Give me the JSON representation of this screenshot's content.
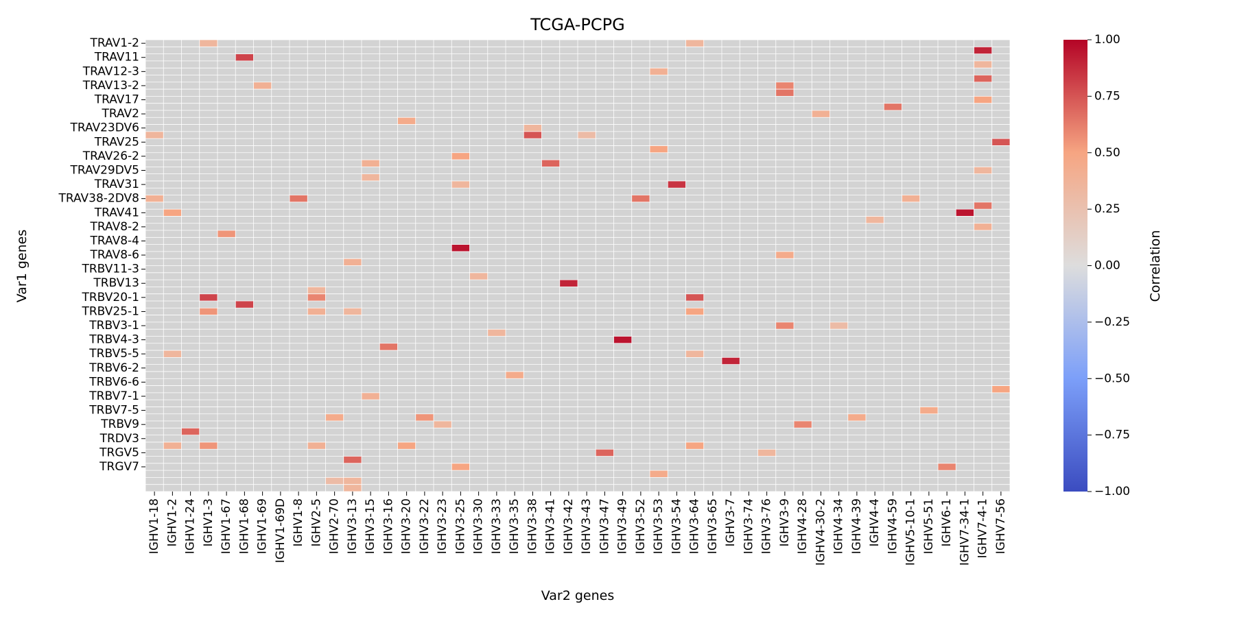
{
  "chart_data": {
    "type": "heatmap",
    "title": "TCGA-PCPG",
    "xlabel": "Var2 genes",
    "ylabel": "Var1 genes",
    "colorbar_label": "Correlation",
    "colormap": "coolwarm",
    "vmin": -1.0,
    "vmax": 1.0,
    "nan_color": "#d3d3d3",
    "colorbar_ticks": [
      "1.00",
      "0.75",
      "0.50",
      "0.25",
      "0.00",
      "−0.25",
      "−0.50",
      "−0.75",
      "−1.00"
    ],
    "x_tick_labels": [
      "IGHV1-18",
      "IGHV1-2",
      "IGHV1-24",
      "IGHV1-3",
      "IGHV1-67",
      "IGHV1-68",
      "IGHV1-69",
      "IGHV1-69D",
      "IGHV1-8",
      "IGHV2-5",
      "IGHV2-70",
      "IGHV3-13",
      "IGHV3-15",
      "IGHV3-16",
      "IGHV3-20",
      "IGHV3-22",
      "IGHV3-23",
      "IGHV3-25",
      "IGHV3-30",
      "IGHV3-33",
      "IGHV3-35",
      "IGHV3-38",
      "IGHV3-41",
      "IGHV3-42",
      "IGHV3-43",
      "IGHV3-47",
      "IGHV3-49",
      "IGHV3-52",
      "IGHV3-53",
      "IGHV3-54",
      "IGHV3-64",
      "IGHV3-65",
      "IGHV3-7",
      "IGHV3-74",
      "IGHV3-76",
      "IGHV3-9",
      "IGHV4-28",
      "IGHV4-30-2",
      "IGHV4-34",
      "IGHV4-39",
      "IGHV4-4",
      "IGHV4-59",
      "IGHV5-10-1",
      "IGHV5-51",
      "IGHV6-1",
      "IGHV7-34-1",
      "IGHV7-4-1",
      "IGHV7-56"
    ],
    "n_rows": 64,
    "y_tick_labels": [
      "TRAV1-2",
      "TRAV11",
      "TRAV12-3",
      "TRAV13-2",
      "TRAV17",
      "TRAV2",
      "TRAV23DV6",
      "TRAV25",
      "TRAV26-2",
      "TRAV29DV5",
      "TRAV31",
      "TRAV38-2DV8",
      "TRAV41",
      "TRAV8-2",
      "TRAV8-4",
      "TRAV8-6",
      "TRBV11-3",
      "TRBV13",
      "TRBV20-1",
      "TRBV25-1",
      "TRBV3-1",
      "TRBV4-3",
      "TRBV5-5",
      "TRBV6-2",
      "TRBV6-6",
      "TRBV7-1",
      "TRBV7-5",
      "TRBV9",
      "TRDV3",
      "TRGV5",
      "TRGV7"
    ],
    "cells": [
      {
        "row": 0,
        "col": 3,
        "value": 0.35
      },
      {
        "row": 0,
        "col": 30,
        "value": 0.35
      },
      {
        "row": 1,
        "col": 46,
        "value": 0.9
      },
      {
        "row": 2,
        "col": 5,
        "value": 0.8
      },
      {
        "row": 3,
        "col": 46,
        "value": 0.35
      },
      {
        "row": 4,
        "col": 28,
        "value": 0.4
      },
      {
        "row": 5,
        "col": 46,
        "value": 0.7
      },
      {
        "row": 6,
        "col": 6,
        "value": 0.4
      },
      {
        "row": 6,
        "col": 35,
        "value": 0.6
      },
      {
        "row": 7,
        "col": 35,
        "value": 0.65
      },
      {
        "row": 8,
        "col": 46,
        "value": 0.5
      },
      {
        "row": 9,
        "col": 41,
        "value": 0.65
      },
      {
        "row": 10,
        "col": 37,
        "value": 0.4
      },
      {
        "row": 11,
        "col": 14,
        "value": 0.45
      },
      {
        "row": 12,
        "col": 21,
        "value": 0.35
      },
      {
        "row": 13,
        "col": 0,
        "value": 0.35
      },
      {
        "row": 13,
        "col": 21,
        "value": 0.75
      },
      {
        "row": 13,
        "col": 24,
        "value": 0.3
      },
      {
        "row": 14,
        "col": 47,
        "value": 0.75
      },
      {
        "row": 15,
        "col": 28,
        "value": 0.5
      },
      {
        "row": 16,
        "col": 17,
        "value": 0.5
      },
      {
        "row": 17,
        "col": 12,
        "value": 0.4
      },
      {
        "row": 17,
        "col": 22,
        "value": 0.7
      },
      {
        "row": 18,
        "col": 46,
        "value": 0.35
      },
      {
        "row": 19,
        "col": 12,
        "value": 0.35
      },
      {
        "row": 20,
        "col": 17,
        "value": 0.35
      },
      {
        "row": 20,
        "col": 29,
        "value": 0.85
      },
      {
        "row": 22,
        "col": 0,
        "value": 0.4
      },
      {
        "row": 22,
        "col": 8,
        "value": 0.65
      },
      {
        "row": 22,
        "col": 27,
        "value": 0.65
      },
      {
        "row": 22,
        "col": 42,
        "value": 0.4
      },
      {
        "row": 23,
        "col": 46,
        "value": 0.65
      },
      {
        "row": 24,
        "col": 1,
        "value": 0.5
      },
      {
        "row": 24,
        "col": 45,
        "value": 0.95
      },
      {
        "row": 25,
        "col": 40,
        "value": 0.35
      },
      {
        "row": 26,
        "col": 46,
        "value": 0.4
      },
      {
        "row": 27,
        "col": 4,
        "value": 0.55
      },
      {
        "row": 29,
        "col": 17,
        "value": 0.95
      },
      {
        "row": 30,
        "col": 35,
        "value": 0.45
      },
      {
        "row": 31,
        "col": 11,
        "value": 0.4
      },
      {
        "row": 33,
        "col": 18,
        "value": 0.35
      },
      {
        "row": 34,
        "col": 23,
        "value": 0.9
      },
      {
        "row": 35,
        "col": 9,
        "value": 0.35
      },
      {
        "row": 36,
        "col": 3,
        "value": 0.8
      },
      {
        "row": 36,
        "col": 9,
        "value": 0.6
      },
      {
        "row": 36,
        "col": 30,
        "value": 0.75
      },
      {
        "row": 37,
        "col": 5,
        "value": 0.8
      },
      {
        "row": 38,
        "col": 3,
        "value": 0.55
      },
      {
        "row": 38,
        "col": 9,
        "value": 0.4
      },
      {
        "row": 38,
        "col": 11,
        "value": 0.35
      },
      {
        "row": 38,
        "col": 30,
        "value": 0.5
      },
      {
        "row": 40,
        "col": 35,
        "value": 0.6
      },
      {
        "row": 40,
        "col": 38,
        "value": 0.3
      },
      {
        "row": 41,
        "col": 19,
        "value": 0.35
      },
      {
        "row": 42,
        "col": 26,
        "value": 0.95
      },
      {
        "row": 43,
        "col": 13,
        "value": 0.65
      },
      {
        "row": 44,
        "col": 1,
        "value": 0.35
      },
      {
        "row": 44,
        "col": 30,
        "value": 0.35
      },
      {
        "row": 45,
        "col": 32,
        "value": 0.9
      },
      {
        "row": 47,
        "col": 20,
        "value": 0.45
      },
      {
        "row": 49,
        "col": 47,
        "value": 0.5
      },
      {
        "row": 50,
        "col": 12,
        "value": 0.4
      },
      {
        "row": 52,
        "col": 43,
        "value": 0.45
      },
      {
        "row": 53,
        "col": 10,
        "value": 0.45
      },
      {
        "row": 53,
        "col": 15,
        "value": 0.55
      },
      {
        "row": 53,
        "col": 39,
        "value": 0.45
      },
      {
        "row": 54,
        "col": 16,
        "value": 0.35
      },
      {
        "row": 54,
        "col": 36,
        "value": 0.6
      },
      {
        "row": 55,
        "col": 2,
        "value": 0.7
      },
      {
        "row": 57,
        "col": 1,
        "value": 0.4
      },
      {
        "row": 57,
        "col": 3,
        "value": 0.55
      },
      {
        "row": 57,
        "col": 9,
        "value": 0.4
      },
      {
        "row": 57,
        "col": 14,
        "value": 0.5
      },
      {
        "row": 57,
        "col": 30,
        "value": 0.5
      },
      {
        "row": 58,
        "col": 25,
        "value": 0.7
      },
      {
        "row": 58,
        "col": 34,
        "value": 0.35
      },
      {
        "row": 59,
        "col": 11,
        "value": 0.7
      },
      {
        "row": 60,
        "col": 17,
        "value": 0.5
      },
      {
        "row": 60,
        "col": 44,
        "value": 0.6
      },
      {
        "row": 61,
        "col": 28,
        "value": 0.45
      },
      {
        "row": 62,
        "col": 10,
        "value": 0.3
      },
      {
        "row": 62,
        "col": 11,
        "value": 0.35
      },
      {
        "row": 63,
        "col": 11,
        "value": 0.35
      }
    ]
  }
}
